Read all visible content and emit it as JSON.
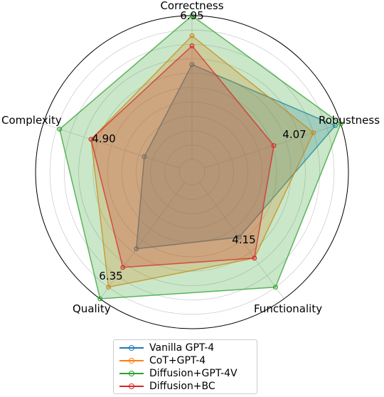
{
  "chart_data": {
    "type": "radar",
    "axes": [
      "Correctness",
      "Robustness",
      "Functionality",
      "Quality",
      "Complexity"
    ],
    "max_labels": [
      "6.95",
      "4.07",
      "4.15",
      "6.35",
      "4.90"
    ],
    "axis_max": [
      6.95,
      4.07,
      4.15,
      6.35,
      4.9
    ],
    "grid": true,
    "legend_position": "bottom",
    "series": [
      {
        "name": "Vanilla GPT-4",
        "color": "#1f77b4",
        "fraction": [
          0.66,
          0.96,
          0.47,
          0.57,
          0.26
        ]
      },
      {
        "name": "CoT+GPT-4",
        "color": "#ff7f0e",
        "fraction": [
          0.86,
          0.8,
          0.65,
          0.9,
          0.65
        ]
      },
      {
        "name": "Diffusion+GPT-4V",
        "color": "#2ca02c",
        "fraction": [
          1.0,
          1.0,
          0.9,
          1.0,
          0.88
        ]
      },
      {
        "name": "Diffusion+BC",
        "color": "#d62728",
        "fraction": [
          0.79,
          0.51,
          0.65,
          0.73,
          0.65
        ]
      }
    ]
  }
}
